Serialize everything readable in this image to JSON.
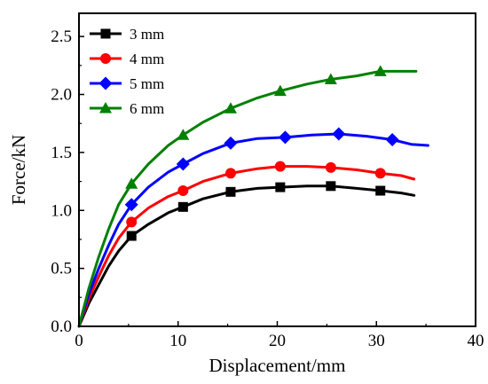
{
  "chart_data": {
    "type": "line",
    "title": "",
    "xlabel": "Displacement/mm",
    "ylabel": "Force/kN",
    "xlim": [
      0,
      40
    ],
    "ylim": [
      0,
      2.7
    ],
    "xticks": [
      0,
      10,
      20,
      30,
      40
    ],
    "xtick_labels": [
      "0",
      "10",
      "20",
      "30",
      "40"
    ],
    "yticks": [
      0,
      0.5,
      1.0,
      1.5,
      2.0,
      2.5
    ],
    "ytick_labels": [
      "0.0",
      "0.5",
      "1.0",
      "1.5",
      "2.0",
      "2.5"
    ],
    "grid": false,
    "legend_position": "top-left",
    "series": [
      {
        "name": "3 mm",
        "color": "#000000",
        "marker": "square",
        "x": [
          0,
          1,
          2,
          3,
          4,
          5.3,
          7,
          9,
          10.5,
          12.5,
          15.3,
          18,
          20.3,
          23,
          25.4,
          28,
          30.4,
          32.5,
          33.8
        ],
        "y": [
          0,
          0.2,
          0.36,
          0.52,
          0.65,
          0.78,
          0.88,
          0.98,
          1.03,
          1.1,
          1.16,
          1.19,
          1.2,
          1.21,
          1.21,
          1.19,
          1.17,
          1.15,
          1.13
        ],
        "marker_x": [
          5.3,
          10.5,
          15.3,
          20.3,
          25.4,
          30.4
        ],
        "marker_y": [
          0.78,
          1.03,
          1.16,
          1.2,
          1.21,
          1.17
        ]
      },
      {
        "name": "4 mm",
        "color": "#ff0000",
        "marker": "circle",
        "x": [
          0,
          1,
          2,
          3,
          4,
          5.3,
          7,
          9,
          10.5,
          12.5,
          15.3,
          18,
          20.3,
          23,
          25.4,
          28,
          30.4,
          32.5,
          33.8
        ],
        "y": [
          0,
          0.24,
          0.43,
          0.61,
          0.76,
          0.9,
          1.02,
          1.12,
          1.17,
          1.25,
          1.32,
          1.36,
          1.38,
          1.38,
          1.37,
          1.35,
          1.32,
          1.3,
          1.27
        ],
        "marker_x": [
          5.3,
          10.5,
          15.3,
          20.3,
          25.4,
          30.4
        ],
        "marker_y": [
          0.9,
          1.17,
          1.32,
          1.38,
          1.37,
          1.32
        ]
      },
      {
        "name": "5 mm",
        "color": "#0000ff",
        "marker": "diamond",
        "x": [
          0,
          1,
          2,
          3,
          4,
          5.3,
          7,
          9,
          10.5,
          12.5,
          15.3,
          18,
          20.8,
          23.5,
          26.2,
          29,
          31.6,
          33.5,
          35.2
        ],
        "y": [
          0,
          0.28,
          0.5,
          0.7,
          0.88,
          1.05,
          1.2,
          1.33,
          1.4,
          1.49,
          1.58,
          1.62,
          1.63,
          1.65,
          1.66,
          1.64,
          1.61,
          1.57,
          1.56
        ],
        "marker_x": [
          5.3,
          10.5,
          15.3,
          20.8,
          26.2,
          31.6
        ],
        "marker_y": [
          1.05,
          1.4,
          1.58,
          1.63,
          1.66,
          1.61
        ]
      },
      {
        "name": "6 mm",
        "color": "#008000",
        "marker": "triangle",
        "x": [
          0,
          1,
          2,
          3,
          4,
          5.3,
          7,
          9,
          10.5,
          12.5,
          15.3,
          18,
          20.3,
          23,
          25.4,
          28,
          30.4,
          32.5,
          34
        ],
        "y": [
          0,
          0.33,
          0.6,
          0.84,
          1.05,
          1.23,
          1.4,
          1.56,
          1.65,
          1.76,
          1.88,
          1.97,
          2.03,
          2.09,
          2.13,
          2.16,
          2.2,
          2.2,
          2.2
        ],
        "marker_x": [
          5.3,
          10.5,
          15.3,
          20.3,
          25.4,
          30.4
        ],
        "marker_y": [
          1.23,
          1.65,
          1.88,
          2.03,
          2.13,
          2.2
        ]
      }
    ]
  }
}
